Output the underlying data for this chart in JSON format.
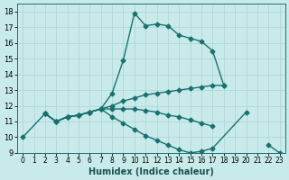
{
  "xlabel": "Humidex (Indice chaleur)",
  "xlim": [
    -0.5,
    23.5
  ],
  "ylim": [
    9,
    18.5
  ],
  "xticks": [
    0,
    1,
    2,
    3,
    4,
    5,
    6,
    7,
    8,
    9,
    10,
    11,
    12,
    13,
    14,
    15,
    16,
    17,
    18,
    19,
    20,
    21,
    22,
    23
  ],
  "yticks": [
    9,
    10,
    11,
    12,
    13,
    14,
    15,
    16,
    17,
    18
  ],
  "bg_color": "#c8eaea",
  "grid_color": "#b0d8d8",
  "line_color": "#1a7070",
  "line_width": 1.0,
  "marker": "D",
  "marker_size": 2.5,
  "lines": [
    {
      "x": [
        0,
        2,
        3,
        4,
        5,
        6,
        7,
        8,
        9,
        10,
        11,
        12,
        13,
        14,
        15,
        16,
        17,
        18
      ],
      "y": [
        10.0,
        11.5,
        11.0,
        11.3,
        11.4,
        11.6,
        11.8,
        12.8,
        14.9,
        17.9,
        17.1,
        17.2,
        17.1,
        16.5,
        16.3,
        16.1,
        15.5,
        13.3
      ]
    },
    {
      "x": [
        2,
        3,
        4,
        5,
        6,
        7,
        8,
        9,
        10,
        11,
        12,
        13,
        14,
        15,
        16,
        17,
        18
      ],
      "y": [
        11.5,
        11.0,
        11.3,
        11.4,
        11.6,
        11.8,
        12.0,
        12.3,
        12.5,
        12.7,
        12.8,
        12.9,
        13.0,
        13.1,
        13.2,
        13.3,
        13.3
      ]
    },
    {
      "x": [
        2,
        3,
        4,
        5,
        6,
        7,
        8,
        9,
        10,
        11,
        12,
        13,
        14,
        15,
        16,
        17
      ],
      "y": [
        11.5,
        11.0,
        11.3,
        11.4,
        11.6,
        11.8,
        11.8,
        11.8,
        11.8,
        11.7,
        11.6,
        11.4,
        11.3,
        11.1,
        10.9,
        10.7
      ]
    },
    {
      "x": [
        2,
        3,
        4,
        5,
        6,
        7,
        8,
        9,
        10,
        11,
        12,
        13,
        14,
        15,
        16,
        17,
        20,
        21,
        22,
        23
      ],
      "y": [
        11.5,
        11.0,
        11.3,
        11.4,
        11.6,
        11.8,
        11.3,
        10.9,
        10.5,
        10.1,
        9.8,
        9.5,
        9.2,
        9.0,
        9.1,
        9.3,
        11.6,
        null,
        9.5,
        9.0
      ]
    }
  ]
}
